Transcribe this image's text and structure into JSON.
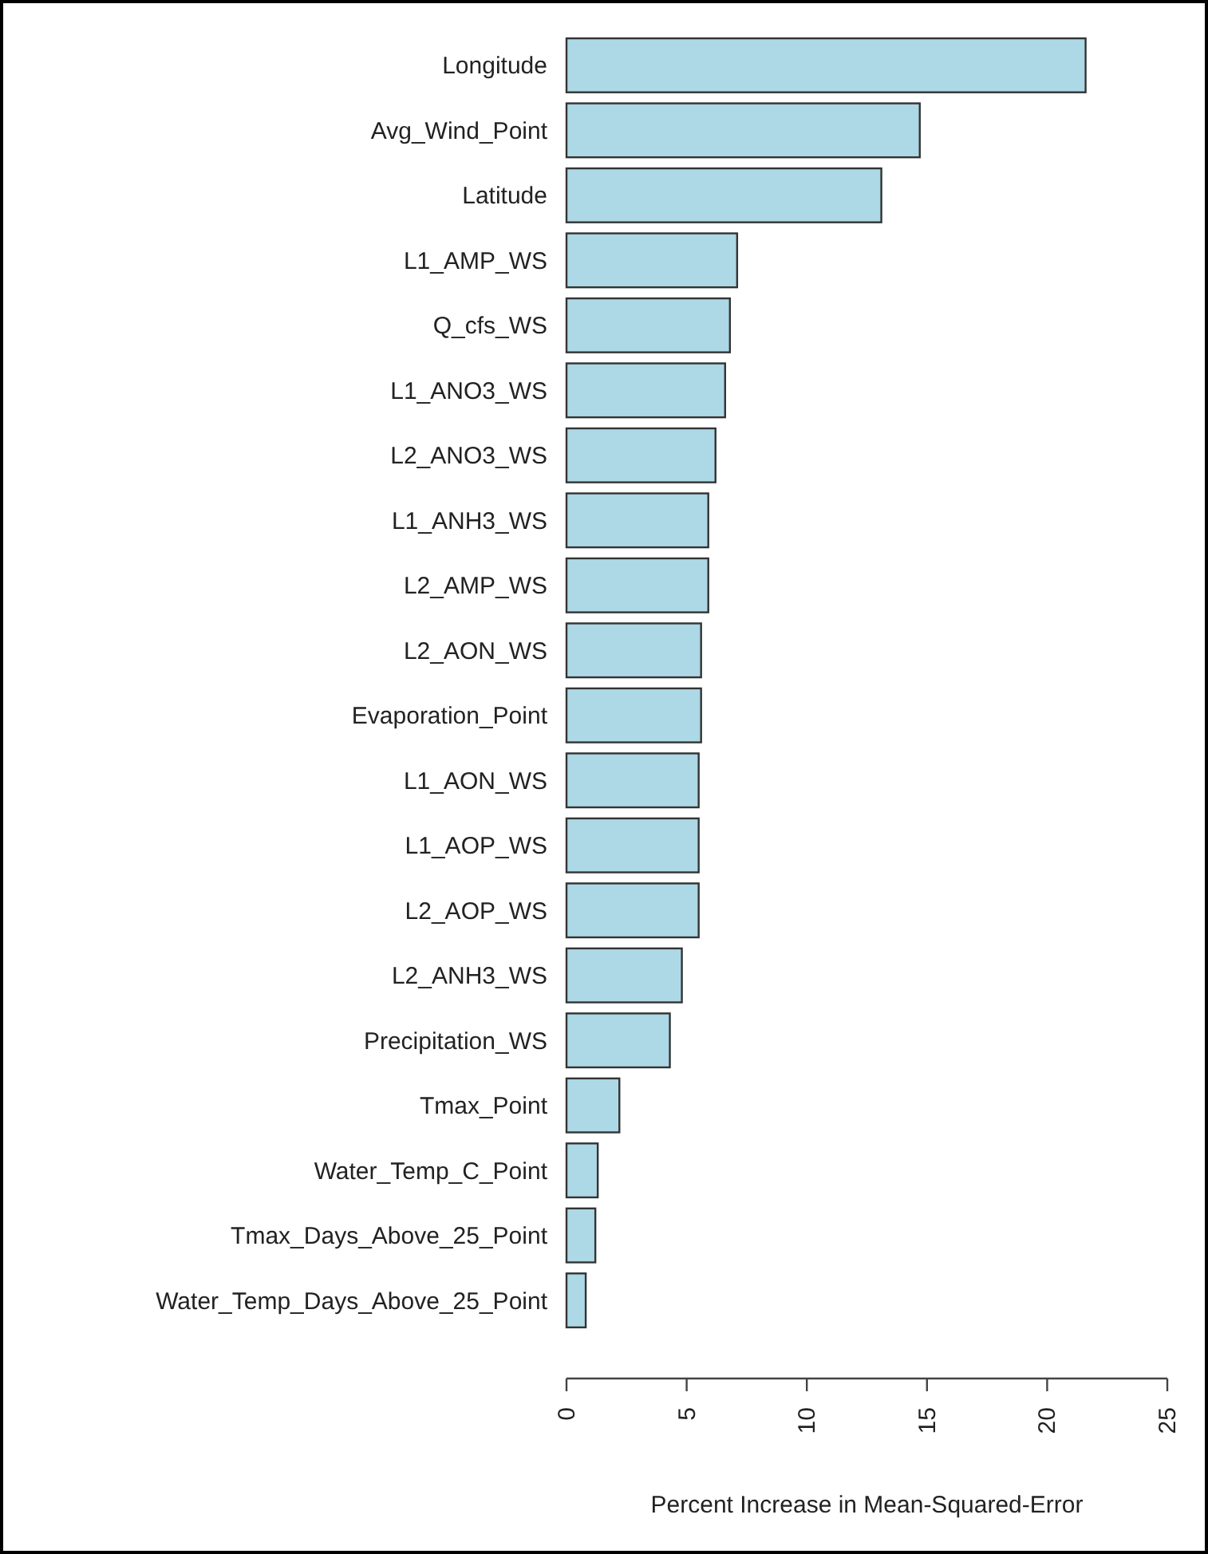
{
  "chart_data": {
    "type": "bar",
    "orientation": "horizontal",
    "xlabel": "Percent Increase in Mean-Squared-Error",
    "categories": [
      "Longitude",
      "Avg_Wind_Point",
      "Latitude",
      "L1_AMP_WS",
      "Q_cfs_WS",
      "L1_ANO3_WS",
      "L2_ANO3_WS",
      "L1_ANH3_WS",
      "L2_AMP_WS",
      "L2_AON_WS",
      "Evaporation_Point",
      "L1_AON_WS",
      "L1_AOP_WS",
      "L2_AOP_WS",
      "L2_ANH3_WS",
      "Precipitation_WS",
      "Tmax_Point",
      "Water_Temp_C_Point",
      "Tmax_Days_Above_25_Point",
      "Water_Temp_Days_Above_25_Point"
    ],
    "values": [
      21.6,
      14.7,
      13.1,
      7.1,
      6.8,
      6.6,
      6.2,
      5.9,
      5.9,
      5.6,
      5.6,
      5.5,
      5.5,
      5.5,
      4.8,
      4.3,
      2.2,
      1.3,
      1.2,
      0.8
    ],
    "color": "#add8e6",
    "xlim": [
      0,
      25
    ],
    "xticks": [
      0,
      5,
      10,
      15,
      20,
      25
    ],
    "grid": false
  }
}
